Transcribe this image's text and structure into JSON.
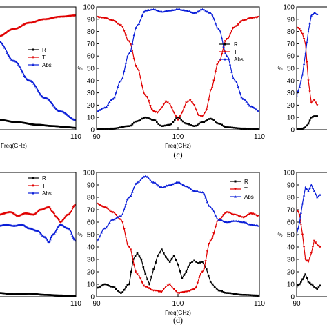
{
  "colors": {
    "R": "#000000",
    "T": "#e00000",
    "Abs": "#0a1ed8"
  },
  "panel_labels": {
    "top": "(c)",
    "bottom": "(d)"
  },
  "chart_data": [
    {
      "id": "top-left",
      "type": "line",
      "xlim": [
        90,
        110
      ],
      "ylim": [
        0,
        100
      ],
      "xlabel": "Freq(GHz)",
      "ylabel": "",
      "xticks": [
        110
      ],
      "yticks": [],
      "legend": [
        "R",
        "T",
        "Abs"
      ],
      "legend_position": "center-right",
      "series": [
        {
          "name": "R",
          "points": [
            [
              90,
              8
            ],
            [
              95,
              6
            ],
            [
              100,
              4
            ],
            [
              104,
              3
            ],
            [
              108,
              2
            ],
            [
              110,
              1.5
            ]
          ]
        },
        {
          "name": "T",
          "points": [
            [
              90,
              76
            ],
            [
              94,
              82
            ],
            [
              98,
              87
            ],
            [
              102,
              90
            ],
            [
              106,
              92
            ],
            [
              110,
              93
            ]
          ]
        },
        {
          "name": "Abs",
          "points": [
            [
              90,
              72
            ],
            [
              94,
              56
            ],
            [
              98,
              40
            ],
            [
              102,
              26
            ],
            [
              106,
              15
            ],
            [
              110,
              8
            ]
          ]
        }
      ]
    },
    {
      "id": "top-center",
      "type": "line",
      "xlim": [
        90,
        110
      ],
      "ylim": [
        0,
        100
      ],
      "xlabel": "Freq(GHz)",
      "ylabel": "%",
      "xticks": [
        90,
        100,
        110
      ],
      "yticks": [
        0,
        10,
        20,
        30,
        40,
        50,
        60,
        70,
        80,
        90,
        100
      ],
      "legend": [
        "R",
        "T",
        "Abs"
      ],
      "legend_position": "center-right",
      "series": [
        {
          "name": "R",
          "points": [
            [
              90,
              0.5
            ],
            [
              92,
              1
            ],
            [
              94,
              3
            ],
            [
              95,
              7
            ],
            [
              96,
              10
            ],
            [
              97,
              8
            ],
            [
              98,
              3
            ],
            [
              99,
              4
            ],
            [
              100,
              10
            ],
            [
              101,
              5
            ],
            [
              102,
              3
            ],
            [
              103,
              6
            ],
            [
              104,
              9
            ],
            [
              105,
              5
            ],
            [
              106,
              2
            ],
            [
              108,
              1
            ],
            [
              110,
              0.5
            ]
          ]
        },
        {
          "name": "T",
          "points": [
            [
              90,
              92
            ],
            [
              91,
              91
            ],
            [
              92,
              89
            ],
            [
              93,
              85
            ],
            [
              94,
              72
            ],
            [
              95,
              50
            ],
            [
              96,
              28
            ],
            [
              97,
              15
            ],
            [
              97.5,
              14
            ],
            [
              98,
              18
            ],
            [
              98.5,
              23
            ],
            [
              99,
              21
            ],
            [
              99.5,
              14
            ],
            [
              100,
              8
            ],
            [
              100.5,
              14
            ],
            [
              101,
              22
            ],
            [
              101.5,
              24
            ],
            [
              102,
              20
            ],
            [
              102.5,
              12
            ],
            [
              103,
              11
            ],
            [
              103.5,
              16
            ],
            [
              104,
              32
            ],
            [
              105,
              55
            ],
            [
              106,
              74
            ],
            [
              107,
              84
            ],
            [
              108,
              89
            ],
            [
              109,
              91
            ],
            [
              110,
              92
            ]
          ]
        },
        {
          "name": "Abs",
          "points": [
            [
              90,
              15
            ],
            [
              91,
              18
            ],
            [
              92,
              25
            ],
            [
              93,
              40
            ],
            [
              94,
              62
            ],
            [
              95,
              85
            ],
            [
              96,
              97
            ],
            [
              97,
              98
            ],
            [
              98,
              96
            ],
            [
              99,
              97
            ],
            [
              100,
              98
            ],
            [
              101,
              97
            ],
            [
              102,
              95
            ],
            [
              103,
              98
            ],
            [
              104,
              95
            ],
            [
              105,
              82
            ],
            [
              106,
              60
            ],
            [
              107,
              40
            ],
            [
              108,
              25
            ],
            [
              109,
              19
            ],
            [
              110,
              15
            ]
          ]
        }
      ]
    },
    {
      "id": "top-right",
      "type": "line",
      "xlim": [
        90,
        110
      ],
      "ylim": [
        0,
        100
      ],
      "xlabel": "",
      "ylabel": "%",
      "xticks": [],
      "yticks": [
        0,
        10,
        20,
        30,
        40,
        50,
        60,
        70,
        80,
        90,
        100
      ],
      "series": [
        {
          "name": "R",
          "points": [
            [
              90,
              0.5
            ],
            [
              91,
              1
            ],
            [
              91.5,
              2
            ],
            [
              92,
              5
            ],
            [
              92.5,
              10
            ],
            [
              93,
              11
            ],
            [
              93.5,
              11
            ]
          ]
        },
        {
          "name": "T",
          "points": [
            [
              90,
              84
            ],
            [
              90.5,
              82
            ],
            [
              91,
              78
            ],
            [
              91.5,
              70
            ],
            [
              92,
              40
            ],
            [
              92.5,
              22
            ],
            [
              93,
              24
            ],
            [
              93.5,
              20
            ]
          ]
        },
        {
          "name": "Abs",
          "points": [
            [
              90,
              28
            ],
            [
              90.5,
              35
            ],
            [
              91,
              45
            ],
            [
              91.5,
              62
            ],
            [
              92,
              80
            ],
            [
              92.5,
              93
            ],
            [
              93,
              95
            ],
            [
              93.5,
              94
            ]
          ]
        }
      ]
    },
    {
      "id": "bottom-left",
      "type": "line",
      "xlim": [
        90,
        110
      ],
      "ylim": [
        0,
        100
      ],
      "xlabel": "",
      "ylabel": "",
      "xticks": [
        110
      ],
      "yticks": [],
      "legend": [
        "R",
        "T",
        "Abs"
      ],
      "legend_position": "top-right",
      "series": [
        {
          "name": "R",
          "points": [
            [
              90,
              3
            ],
            [
              94,
              2
            ],
            [
              98,
              2.5
            ],
            [
              102,
              1.5
            ],
            [
              106,
              1
            ],
            [
              110,
              0.5
            ]
          ]
        },
        {
          "name": "T",
          "points": [
            [
              90,
              66
            ],
            [
              93,
              68
            ],
            [
              95,
              65
            ],
            [
              97,
              67
            ],
            [
              99,
              66
            ],
            [
              101,
              70
            ],
            [
              103,
              72
            ],
            [
              104,
              68
            ],
            [
              105,
              64
            ],
            [
              106,
              60
            ],
            [
              108,
              66
            ],
            [
              110,
              74
            ]
          ]
        },
        {
          "name": "Abs",
          "points": [
            [
              90,
              57
            ],
            [
              92,
              58
            ],
            [
              94,
              57
            ],
            [
              96,
              58
            ],
            [
              98,
              55
            ],
            [
              100,
              53
            ],
            [
              102,
              48
            ],
            [
              103,
              44
            ],
            [
              104,
              50
            ],
            [
              106,
              58
            ],
            [
              108,
              55
            ],
            [
              110,
              45
            ]
          ]
        }
      ]
    },
    {
      "id": "bottom-center",
      "type": "line",
      "xlim": [
        90,
        110
      ],
      "ylim": [
        0,
        100
      ],
      "xlabel": "Freq(GHz)",
      "ylabel": "%",
      "xticks": [
        90,
        100,
        110
      ],
      "yticks": [
        0,
        10,
        20,
        30,
        40,
        50,
        60,
        70,
        80,
        90,
        100
      ],
      "legend": [
        "R",
        "T",
        "Abs"
      ],
      "legend_position": "top-right",
      "series": [
        {
          "name": "R",
          "points": [
            [
              90,
              7
            ],
            [
              91,
              10
            ],
            [
              92,
              8
            ],
            [
              93,
              3
            ],
            [
              94,
              10
            ],
            [
              94.5,
              30
            ],
            [
              95,
              35
            ],
            [
              95.5,
              30
            ],
            [
              96,
              18
            ],
            [
              96.5,
              10
            ],
            [
              97,
              22
            ],
            [
              97.5,
              33
            ],
            [
              98,
              38
            ],
            [
              98.5,
              32
            ],
            [
              99,
              28
            ],
            [
              99.5,
              33
            ],
            [
              100,
              26
            ],
            [
              100.5,
              15
            ],
            [
              101,
              20
            ],
            [
              101.5,
              27
            ],
            [
              102,
              29
            ],
            [
              102.5,
              27
            ],
            [
              103,
              28
            ],
            [
              103.5,
              22
            ],
            [
              104,
              12
            ],
            [
              104.5,
              8
            ],
            [
              105,
              5
            ],
            [
              106,
              3
            ],
            [
              108,
              1.5
            ],
            [
              110,
              1
            ]
          ]
        },
        {
          "name": "T",
          "points": [
            [
              90,
              75
            ],
            [
              91,
              72
            ],
            [
              92,
              68
            ],
            [
              93,
              62
            ],
            [
              94,
              40
            ],
            [
              95,
              18
            ],
            [
              96,
              8
            ],
            [
              97,
              5
            ],
            [
              98,
              4
            ],
            [
              98.5,
              8
            ],
            [
              99,
              10
            ],
            [
              99.5,
              6
            ],
            [
              100,
              3
            ],
            [
              101,
              4
            ],
            [
              102,
              6
            ],
            [
              103,
              20
            ],
            [
              104,
              45
            ],
            [
              105,
              62
            ],
            [
              106,
              68
            ],
            [
              107,
              66
            ],
            [
              108,
              64
            ],
            [
              109,
              67
            ],
            [
              110,
              65
            ]
          ]
        },
        {
          "name": "Abs",
          "points": [
            [
              90,
              45
            ],
            [
              91,
              55
            ],
            [
              92,
              62
            ],
            [
              93,
              65
            ],
            [
              94,
              80
            ],
            [
              95,
              92
            ],
            [
              96,
              97
            ],
            [
              97,
              92
            ],
            [
              98,
              88
            ],
            [
              99,
              90
            ],
            [
              100,
              92
            ],
            [
              101,
              89
            ],
            [
              102,
              85
            ],
            [
              103,
              84
            ],
            [
              104,
              72
            ],
            [
              105,
              62
            ],
            [
              106,
              60
            ],
            [
              107,
              61
            ],
            [
              108,
              60
            ],
            [
              109,
              58
            ],
            [
              110,
              57
            ]
          ]
        }
      ]
    },
    {
      "id": "bottom-right",
      "type": "line",
      "xlim": [
        90,
        110
      ],
      "ylim": [
        0,
        100
      ],
      "xlabel": "",
      "ylabel": "%",
      "xticks": [
        90
      ],
      "yticks": [
        0,
        10,
        20,
        30,
        40,
        50,
        60,
        70,
        80,
        90,
        100
      ],
      "series": [
        {
          "name": "R",
          "points": [
            [
              90,
              8
            ],
            [
              90.5,
              10
            ],
            [
              91,
              14
            ],
            [
              91.5,
              18
            ],
            [
              92,
              12
            ],
            [
              92.5,
              10
            ],
            [
              93,
              8
            ],
            [
              93.5,
              6
            ],
            [
              94,
              9
            ]
          ]
        },
        {
          "name": "T",
          "points": [
            [
              90,
              71
            ],
            [
              90.5,
              66
            ],
            [
              91,
              50
            ],
            [
              91.5,
              30
            ],
            [
              92,
              28
            ],
            [
              92.5,
              35
            ],
            [
              93,
              45
            ],
            [
              93.5,
              42
            ],
            [
              94,
              40
            ]
          ]
        },
        {
          "name": "Abs",
          "points": [
            [
              90,
              50
            ],
            [
              90.5,
              60
            ],
            [
              91,
              75
            ],
            [
              91.5,
              88
            ],
            [
              92,
              85
            ],
            [
              92.5,
              90
            ],
            [
              93,
              85
            ],
            [
              93.5,
              80
            ],
            [
              94,
              82
            ]
          ]
        }
      ]
    }
  ]
}
